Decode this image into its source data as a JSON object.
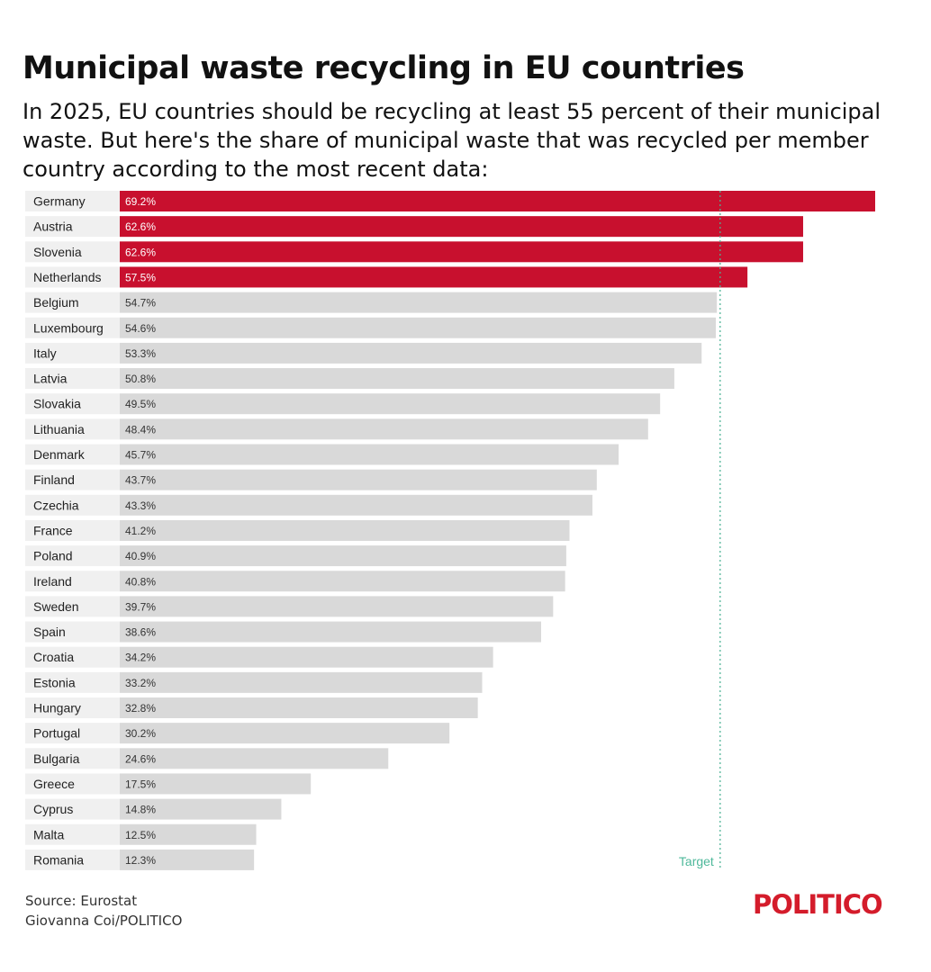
{
  "header": {
    "title": "Municipal waste recycling in EU countries",
    "subtitle": "In 2025, EU countries should be recycling at least 55 percent of their municipal waste. But here's the share of municipal waste that was recycled per member country according to the most recent data:"
  },
  "footer": {
    "source": "Source: Eurostat",
    "credit": "Giovanna Coi/POLITICO",
    "logo": "POLITICO"
  },
  "colors": {
    "above_target": "#c8102e",
    "below_target": "#d9d9d9",
    "row_band": "#f0f0f0",
    "target_line": "#4db89a",
    "logo": "#d41c2b"
  },
  "chart_data": {
    "type": "bar",
    "orientation": "horizontal",
    "categories": [
      "Germany",
      "Austria",
      "Slovenia",
      "Netherlands",
      "Belgium",
      "Luxembourg",
      "Italy",
      "Latvia",
      "Slovakia",
      "Lithuania",
      "Denmark",
      "Finland",
      "Czechia",
      "France",
      "Poland",
      "Ireland",
      "Sweden",
      "Spain",
      "Croatia",
      "Estonia",
      "Hungary",
      "Portugal",
      "Bulgaria",
      "Greece",
      "Cyprus",
      "Malta",
      "Romania"
    ],
    "values": [
      69.2,
      62.6,
      62.6,
      57.5,
      54.7,
      54.6,
      53.3,
      50.8,
      49.5,
      48.4,
      45.7,
      43.7,
      43.3,
      41.2,
      40.9,
      40.8,
      39.7,
      38.6,
      34.2,
      33.2,
      32.8,
      30.2,
      24.6,
      17.5,
      14.8,
      12.5,
      12.3
    ],
    "labels": [
      "69.2%",
      "62.6%",
      "62.6%",
      "57.5%",
      "54.7%",
      "54.6%",
      "53.3%",
      "50.8%",
      "49.5%",
      "48.4%",
      "45.7%",
      "43.7%",
      "43.3%",
      "41.2%",
      "40.9%",
      "40.8%",
      "39.7%",
      "38.6%",
      "34.2%",
      "33.2%",
      "32.8%",
      "30.2%",
      "24.6%",
      "17.5%",
      "14.8%",
      "12.5%",
      "12.3%"
    ],
    "unit": "%",
    "target": 55,
    "target_label": "Target",
    "xlim": [
      0,
      69.2
    ],
    "grid": false,
    "title": "",
    "xlabel": "",
    "ylabel": ""
  }
}
